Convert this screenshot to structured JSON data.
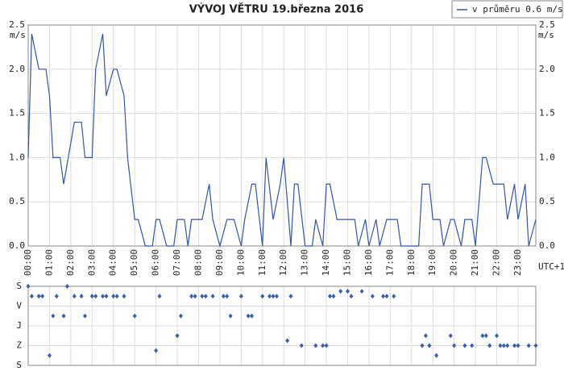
{
  "chart_data": [
    {
      "type": "line",
      "title": "VÝVOJ VĚTRU  19.března 2016",
      "y_label": "m/s",
      "x_label": "UTC+1",
      "xlim": [
        0,
        1430
      ],
      "xticks": [
        {
          "value": 0,
          "label": "00:00"
        },
        {
          "value": 60,
          "label": "01:00"
        },
        {
          "value": 120,
          "label": "02:00"
        },
        {
          "value": 180,
          "label": "03:00"
        },
        {
          "value": 240,
          "label": "04:00"
        },
        {
          "value": 300,
          "label": "05:00"
        },
        {
          "value": 360,
          "label": "06:00"
        },
        {
          "value": 420,
          "label": "07:00"
        },
        {
          "value": 480,
          "label": "08:00"
        },
        {
          "value": 540,
          "label": "09:00"
        },
        {
          "value": 600,
          "label": "10:00"
        },
        {
          "value": 660,
          "label": "11:00"
        },
        {
          "value": 720,
          "label": "12:00"
        },
        {
          "value": 780,
          "label": "13:00"
        },
        {
          "value": 840,
          "label": "14:00"
        },
        {
          "value": 900,
          "label": "15:00"
        },
        {
          "value": 960,
          "label": "16:00"
        },
        {
          "value": 1020,
          "label": "17:00"
        },
        {
          "value": 1080,
          "label": "18:00"
        },
        {
          "value": 1140,
          "label": "19:00"
        },
        {
          "value": 1200,
          "label": "20:00"
        },
        {
          "value": 1260,
          "label": "21:00"
        },
        {
          "value": 1320,
          "label": "22:00"
        },
        {
          "value": 1380,
          "label": "23:00"
        }
      ],
      "ylim": [
        0,
        2.5
      ],
      "yticks": [
        {
          "value": 0,
          "label": "0.0"
        },
        {
          "value": 0.5,
          "label": "0.5"
        },
        {
          "value": 1,
          "label": "1.0"
        },
        {
          "value": 1.5,
          "label": "1.5"
        },
        {
          "value": 2,
          "label": "2.0"
        },
        {
          "value": 2.5,
          "label": "2.5"
        }
      ],
      "grid": true,
      "legend": "top-right",
      "series": [
        {
          "name": "v průměru 0.6 m/s",
          "color": "#3355aa",
          "x": [
            0,
            10,
            30,
            50,
            60,
            70,
            90,
            100,
            130,
            150,
            160,
            180,
            190,
            210,
            220,
            240,
            250,
            270,
            280,
            300,
            310,
            330,
            350,
            360,
            370,
            390,
            410,
            420,
            440,
            450,
            460,
            490,
            510,
            520,
            540,
            560,
            580,
            600,
            610,
            630,
            640,
            660,
            670,
            690,
            710,
            720,
            740,
            750,
            760,
            780,
            800,
            810,
            830,
            840,
            850,
            870,
            920,
            930,
            950,
            960,
            980,
            990,
            1010,
            1040,
            1050,
            1100,
            1110,
            1130,
            1140,
            1160,
            1170,
            1190,
            1200,
            1220,
            1230,
            1250,
            1260,
            1280,
            1290,
            1310,
            1340,
            1350,
            1370,
            1380,
            1400,
            1410,
            1430
          ],
          "values": [
            1.0,
            2.4,
            2.0,
            2.0,
            1.7,
            1.0,
            1.0,
            0.7,
            1.4,
            1.4,
            1.0,
            1.0,
            2.0,
            2.4,
            1.7,
            2.0,
            2.0,
            1.7,
            1.0,
            0.3,
            0.3,
            0,
            0,
            0.3,
            0.3,
            0,
            0,
            0.3,
            0.3,
            0,
            0.3,
            0.3,
            0.7,
            0.3,
            0,
            0.3,
            0.3,
            0,
            0.3,
            0.7,
            0.7,
            0,
            1.0,
            0.3,
            0.7,
            1.0,
            0,
            0.7,
            0.7,
            0,
            0,
            0.3,
            0,
            0.7,
            0.7,
            0.3,
            0.3,
            0,
            0.3,
            0,
            0.3,
            0,
            0.3,
            0.3,
            0,
            0,
            0.7,
            0.7,
            0.3,
            0.3,
            0,
            0.3,
            0.3,
            0,
            0.3,
            0.3,
            0,
            1.0,
            1.0,
            0.7,
            0.7,
            0.3,
            0.7,
            0.3,
            0.7,
            0,
            0.3
          ]
        }
      ]
    },
    {
      "type": "scatter",
      "xlim": [
        0,
        1430
      ],
      "ylim": [
        0,
        360
      ],
      "yticks": [
        {
          "value": 0,
          "label": "S"
        },
        {
          "value": 90,
          "label": "V"
        },
        {
          "value": 180,
          "label": "J"
        },
        {
          "value": 270,
          "label": "Z"
        },
        {
          "value": 360,
          "label": "S"
        }
      ],
      "grid": true,
      "color": "#3a5ea8",
      "x": [
        0,
        10,
        30,
        40,
        60,
        70,
        80,
        100,
        110,
        130,
        150,
        160,
        180,
        190,
        210,
        220,
        240,
        250,
        270,
        300,
        360,
        370,
        420,
        430,
        460,
        470,
        490,
        500,
        520,
        550,
        560,
        570,
        600,
        620,
        630,
        660,
        680,
        690,
        700,
        730,
        740,
        770,
        810,
        830,
        840,
        850,
        860,
        880,
        900,
        910,
        940,
        970,
        1000,
        1010,
        1030,
        1110,
        1120,
        1130,
        1150,
        1190,
        1200,
        1230,
        1250,
        1280,
        1290,
        1300,
        1320,
        1330,
        1340,
        1350,
        1370,
        1380,
        1410,
        1430
      ],
      "values": [
        0,
        45,
        45,
        45,
        315,
        135,
        45,
        135,
        0,
        45,
        45,
        135,
        45,
        45,
        45,
        45,
        45,
        45,
        45,
        135,
        292.5,
        45,
        225,
        135,
        45,
        45,
        45,
        45,
        45,
        45,
        45,
        135,
        45,
        135,
        135,
        45,
        45,
        45,
        45,
        247.5,
        45,
        270,
        270,
        270,
        270,
        45,
        45,
        22.5,
        22.5,
        45,
        22.5,
        45,
        45,
        45,
        45,
        270,
        225,
        270,
        315,
        225,
        270,
        270,
        270,
        225,
        225,
        270,
        225,
        270,
        270,
        270,
        270,
        270,
        270,
        270
      ]
    }
  ]
}
